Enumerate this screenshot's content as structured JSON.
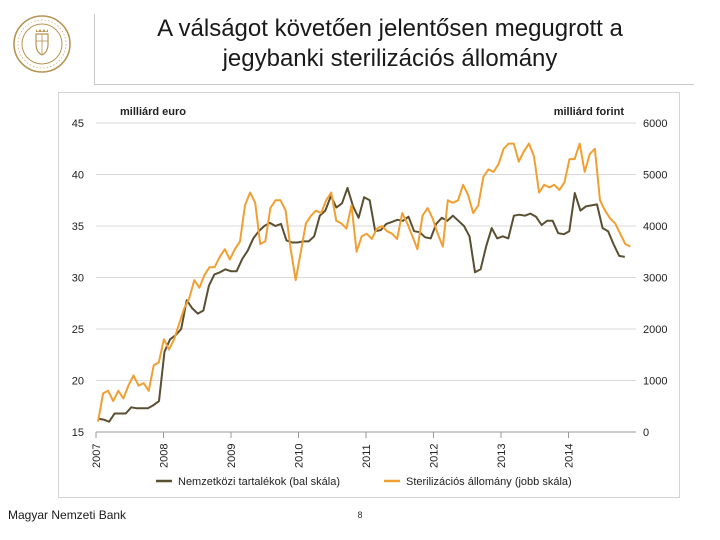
{
  "slide": {
    "title_line1": "A válságot követően jelentősen megugrott a",
    "title_line2": "jegybanki sterilizációs állomány",
    "footer_org": "Magyar Nemzeti Bank",
    "page_number": "8"
  },
  "colors": {
    "reserves": "#5b4f32",
    "sterilization": "#f0a032",
    "grid": "#d9d9d9",
    "logo": "#b69553"
  },
  "chart_data": {
    "type": "line",
    "title": "",
    "left_axis_label": "milliárd euro",
    "right_axis_label": "milliárd forint",
    "left_ylim": [
      15,
      45
    ],
    "left_ticks": [
      15,
      20,
      25,
      30,
      35,
      40,
      45
    ],
    "right_ylim": [
      0,
      6000
    ],
    "right_ticks": [
      0,
      1000,
      2000,
      3000,
      4000,
      5000,
      6000
    ],
    "grid": true,
    "legend_position": "bottom",
    "x_start_year": 2007,
    "x_ticks": [
      "2007",
      "2008",
      "2009",
      "2010",
      "2011",
      "2012",
      "2013",
      "2014"
    ],
    "series": [
      {
        "name": "Nemzetközi tartalékok (bal skála)",
        "axis": "left",
        "color": "#5b4f32",
        "values": [
          16.3,
          16.2,
          16.0,
          16.8,
          16.8,
          16.8,
          17.4,
          17.3,
          17.3,
          17.3,
          17.6,
          18.0,
          22.8,
          24.0,
          24.4,
          25.0,
          27.8,
          27.0,
          26.5,
          26.8,
          29.2,
          30.3,
          30.5,
          30.8,
          30.6,
          30.6,
          31.8,
          32.6,
          33.8,
          34.5,
          35.0,
          35.3,
          35.0,
          35.2,
          33.6,
          33.4,
          33.4,
          33.5,
          33.5,
          34.0,
          36.0,
          36.5,
          37.9,
          36.8,
          37.2,
          38.7,
          36.9,
          35.8,
          37.8,
          37.5,
          34.5,
          34.6,
          35.2,
          35.4,
          35.6,
          35.5,
          35.9,
          34.5,
          34.4,
          33.9,
          33.8,
          35.2,
          35.8,
          35.5,
          36.0,
          35.5,
          35.0,
          34.0,
          30.5,
          30.8,
          33.0,
          34.8,
          33.8,
          34.0,
          33.8,
          36.0,
          36.1,
          36.0,
          36.2,
          35.9,
          35.1,
          35.5,
          35.5,
          34.3,
          34.2,
          34.5,
          38.2,
          36.5,
          36.9,
          37.0,
          37.1,
          34.8,
          34.5,
          33.2,
          32.1,
          32.0
        ]
      },
      {
        "name": "Sterilizációs állomány (jobb skála)",
        "axis": "right",
        "color": "#f0a032",
        "values": [
          200,
          750,
          800,
          600,
          800,
          650,
          900,
          1100,
          900,
          950,
          800,
          1300,
          1350,
          1800,
          1600,
          1800,
          2100,
          2400,
          2600,
          2950,
          2800,
          3050,
          3200,
          3200,
          3400,
          3550,
          3350,
          3550,
          3700,
          4400,
          4650,
          4450,
          3650,
          3700,
          4350,
          4500,
          4500,
          4300,
          3550,
          2950,
          3500,
          4050,
          4200,
          4300,
          4250,
          4500,
          4650,
          4100,
          4050,
          3950,
          4400,
          3500,
          3800,
          3850,
          3750,
          3950,
          4000,
          3900,
          3850,
          3750,
          4250,
          4050,
          3800,
          3550,
          4200,
          4350,
          4150,
          3850,
          3600,
          4500,
          4450,
          4500,
          4800,
          4600,
          4250,
          4400,
          4950,
          5100,
          5050,
          5200,
          5500,
          5600,
          5600,
          5250,
          5450,
          5600,
          5350,
          4650,
          4800,
          4750,
          4800,
          4700,
          4850,
          5300,
          5300,
          5600,
          5050,
          5400,
          5500,
          4500,
          4300,
          4150,
          4050,
          3850,
          3650,
          3600
        ]
      }
    ]
  }
}
